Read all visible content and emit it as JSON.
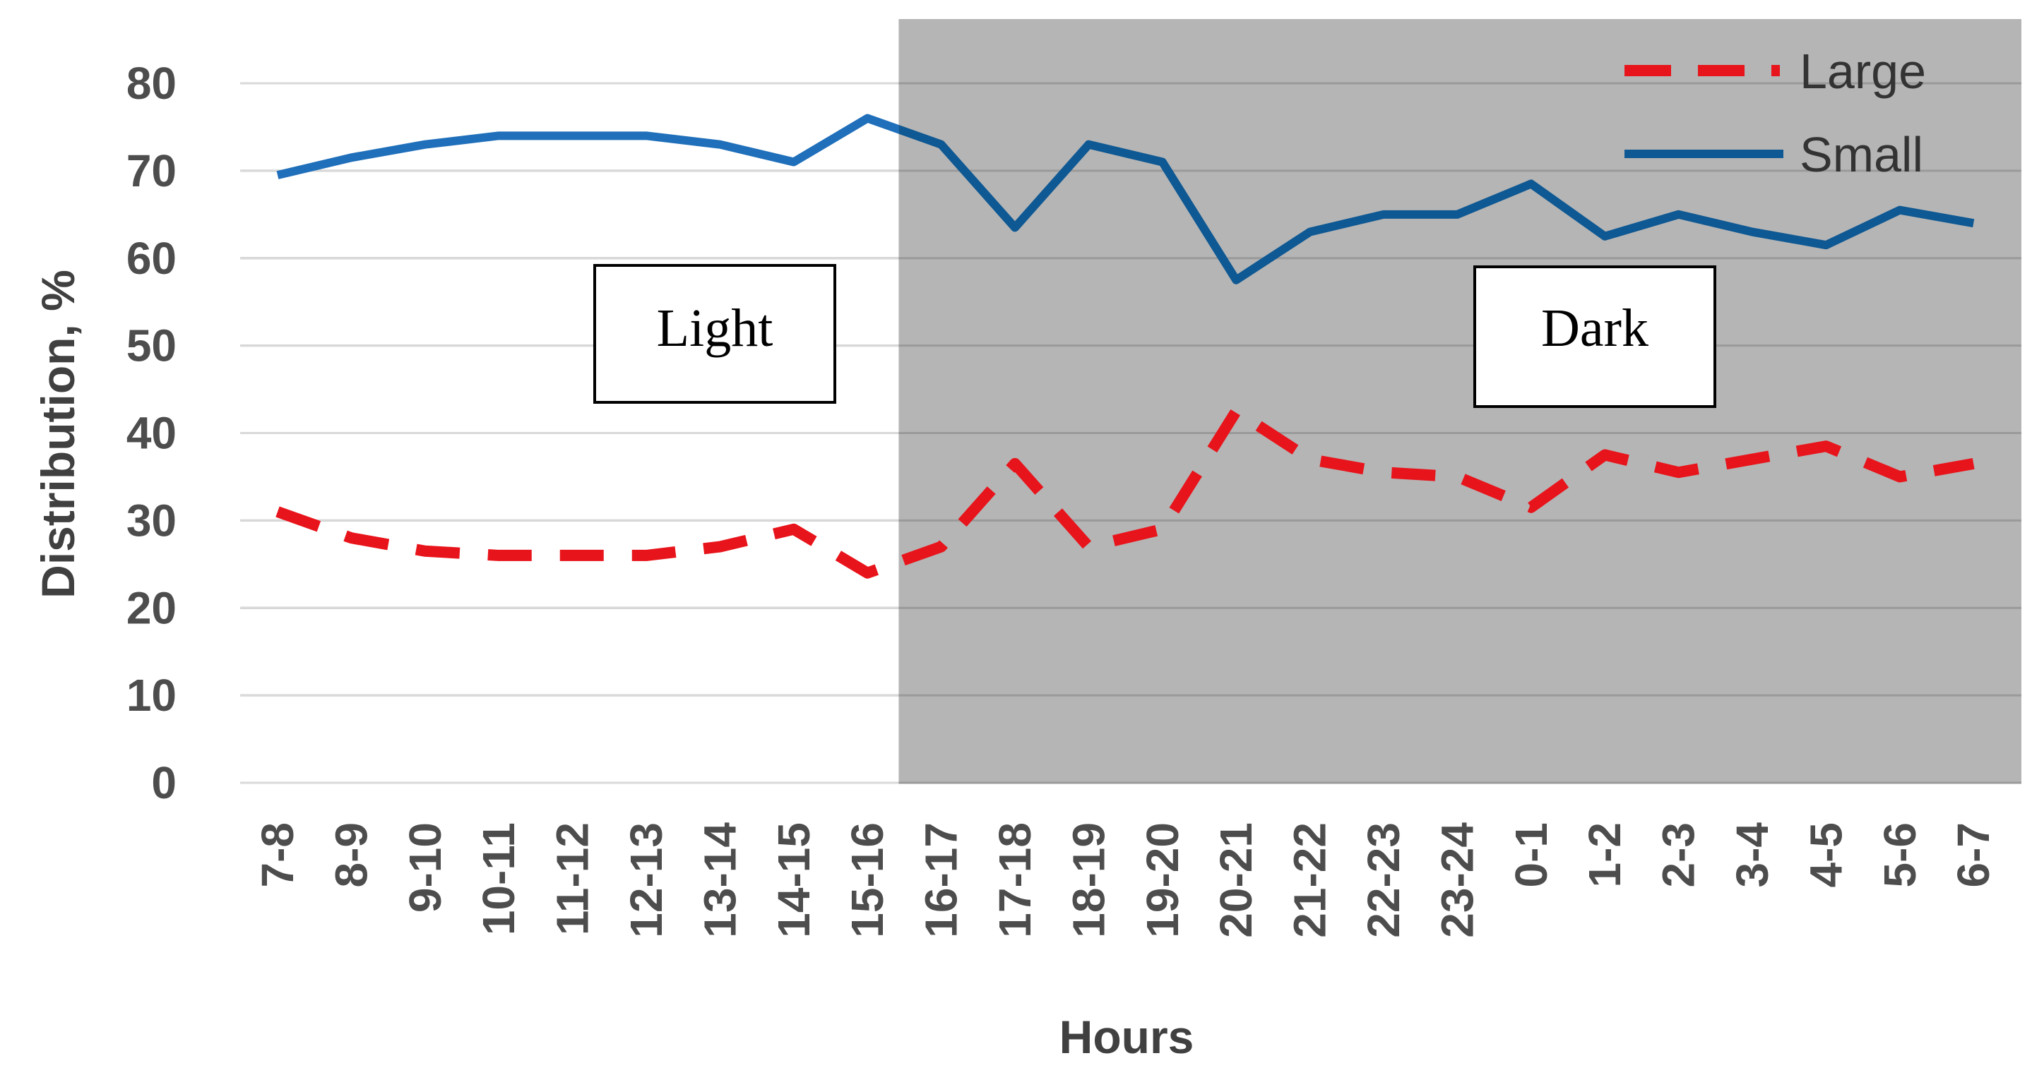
{
  "chart_data": {
    "type": "line",
    "title": "",
    "xlabel": "Hours",
    "ylabel": "Distribution, %",
    "ylim": [
      0,
      80
    ],
    "yticks": [
      "0",
      "10",
      "20",
      "30",
      "40",
      "50",
      "60",
      "70",
      "80"
    ],
    "grid": true,
    "legend_position": "top-right",
    "categories": [
      "7-8",
      "8-9",
      "9-10",
      "10-11",
      "11-12",
      "12-13",
      "13-14",
      "14-15",
      "15-16",
      "16-17",
      "17-18",
      "18-19",
      "19-20",
      "20-21",
      "21-22",
      "22-23",
      "23-24",
      "0-1",
      "1-2",
      "2-3",
      "3-4",
      "4-5",
      "5-6",
      "6-7"
    ],
    "series": [
      {
        "name": "Large",
        "style": "dashed",
        "color": "#e8141b",
        "values": [
          31,
          28,
          26.5,
          26,
          26,
          26,
          27,
          29,
          24,
          27,
          36.5,
          27,
          29,
          42.5,
          37,
          35.5,
          35,
          31.5,
          37.5,
          35.5,
          37,
          38.5,
          35,
          36.5
        ]
      },
      {
        "name": "Small",
        "style": "solid",
        "color": "#1f6fba",
        "dark_color": "#0e5893",
        "values": [
          69.5,
          71.5,
          73,
          74,
          74,
          74,
          73,
          71,
          76,
          73,
          63.5,
          73,
          71,
          57.5,
          63,
          65,
          65,
          68.5,
          62.5,
          65,
          63,
          61.5,
          65.5,
          64
        ]
      }
    ],
    "shaded_region": {
      "from_category": "16-17",
      "to_category": "6-7",
      "color": "#b5b5b5"
    },
    "annotations": [
      {
        "text": "Light"
      },
      {
        "text": "Dark"
      }
    ]
  }
}
